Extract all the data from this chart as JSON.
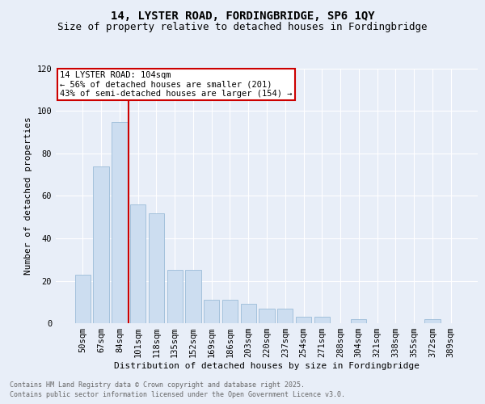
{
  "title_line1": "14, LYSTER ROAD, FORDINGBRIDGE, SP6 1QY",
  "title_line2": "Size of property relative to detached houses in Fordingbridge",
  "xlabel": "Distribution of detached houses by size in Fordingbridge",
  "ylabel": "Number of detached properties",
  "categories": [
    "50sqm",
    "67sqm",
    "84sqm",
    "101sqm",
    "118sqm",
    "135sqm",
    "152sqm",
    "169sqm",
    "186sqm",
    "203sqm",
    "220sqm",
    "237sqm",
    "254sqm",
    "271sqm",
    "288sqm",
    "304sqm",
    "321sqm",
    "338sqm",
    "355sqm",
    "372sqm",
    "389sqm"
  ],
  "values": [
    23,
    74,
    95,
    56,
    52,
    25,
    25,
    11,
    11,
    9,
    7,
    7,
    3,
    3,
    0,
    2,
    0,
    0,
    0,
    2,
    0
  ],
  "bar_color": "#ccddf0",
  "bar_edge_color": "#9bbcd8",
  "annotation_text_line1": "14 LYSTER ROAD: 104sqm",
  "annotation_text_line2": "← 56% of detached houses are smaller (201)",
  "annotation_text_line3": "43% of semi-detached houses are larger (154) →",
  "annotation_box_color": "#ffffff",
  "annotation_box_edge_color": "#cc0000",
  "vline_color": "#cc0000",
  "vline_x": 2.5,
  "ylim": [
    0,
    120
  ],
  "yticks": [
    0,
    20,
    40,
    60,
    80,
    100,
    120
  ],
  "footnote_line1": "Contains HM Land Registry data © Crown copyright and database right 2025.",
  "footnote_line2": "Contains public sector information licensed under the Open Government Licence v3.0.",
  "bg_color": "#e8eef8",
  "plot_bg_color": "#e8eef8",
  "title1_fontsize": 10,
  "title2_fontsize": 9,
  "ylabel_fontsize": 8,
  "xlabel_fontsize": 8,
  "tick_fontsize": 7.5,
  "annot_fontsize": 7.5,
  "footnote_fontsize": 6
}
